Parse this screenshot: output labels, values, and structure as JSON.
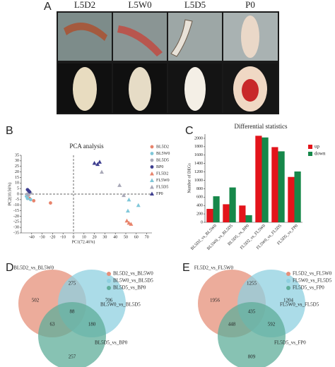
{
  "photos": {
    "panel": "A",
    "columns": [
      "L5D2",
      "L5W0",
      "L5D5",
      "P0"
    ]
  },
  "chart_data": [
    {
      "type": "scatter",
      "panel": "B",
      "title": "PCA analysis",
      "x_label": "PC1(72.46%)",
      "y_label": "PC2(10.56%)",
      "xlim": [
        -50,
        75
      ],
      "xticks": [
        -40,
        -30,
        -20,
        -10,
        0,
        10,
        20,
        30,
        40,
        50,
        60,
        70
      ],
      "ylim": [
        -35,
        35
      ],
      "yticks": [
        -35,
        -30,
        -25,
        -20,
        -15,
        -10,
        -5,
        0,
        5,
        10,
        15,
        20,
        25,
        30,
        35
      ],
      "series": [
        {
          "name": "BL5D2",
          "color": "#e8836b",
          "marker": "circle",
          "x": [
            -42,
            -38,
            -22
          ],
          "y": [
            -4,
            -6,
            -8
          ]
        },
        {
          "name": "BL5W0",
          "color": "#7fc7d9",
          "marker": "circle",
          "x": [
            -45,
            -44,
            -41
          ],
          "y": [
            -2,
            -4,
            -5
          ]
        },
        {
          "name": "BL5D5",
          "color": "#a9a9b8",
          "marker": "circle",
          "x": [
            -44,
            -43,
            -41
          ],
          "y": [
            0,
            -1,
            1
          ]
        },
        {
          "name": "BP0",
          "color": "#3d3d8f",
          "marker": "circle",
          "x": [
            -44,
            -43,
            -42
          ],
          "y": [
            4,
            3,
            2
          ]
        },
        {
          "name": "FL5D2",
          "color": "#e8836b",
          "marker": "triangle",
          "x": [
            51,
            53,
            55
          ],
          "y": [
            -24,
            -26,
            -27
          ]
        },
        {
          "name": "FL5W0",
          "color": "#7fc7d9",
          "marker": "triangle",
          "x": [
            52,
            62,
            53
          ],
          "y": [
            -15,
            -10,
            -5
          ]
        },
        {
          "name": "FL5D5",
          "color": "#a9a9b8",
          "marker": "triangle",
          "x": [
            48,
            44,
            27
          ],
          "y": [
            -1,
            8,
            20
          ]
        },
        {
          "name": "FP0",
          "color": "#3d3d8f",
          "marker": "triangle",
          "x": [
            20,
            23,
            25
          ],
          "y": [
            28,
            27,
            29
          ]
        }
      ]
    },
    {
      "type": "bar",
      "panel": "C",
      "title": "Differential statistics",
      "y_label": "Number of DEGs",
      "categories": [
        "BL5D2_vs_BL5W0",
        "BL5W0_vs_BL5D5",
        "BL5D5_vs_BP0",
        "FL5D2_vs_FL5W0",
        "FL5W0_vs_FL5D5",
        "FL5D5_vs_FP0"
      ],
      "ylim": [
        0,
        2100
      ],
      "yticks": [
        0,
        200,
        400,
        600,
        800,
        1000,
        1200,
        1400,
        1600,
        1800,
        2000
      ],
      "series": [
        {
          "name": "up",
          "color": "#e3141b",
          "values": [
            320,
            430,
            400,
            2060,
            1790,
            1080
          ]
        },
        {
          "name": "down",
          "color": "#16884a",
          "values": [
            620,
            830,
            170,
            2020,
            1690,
            1210
          ]
        }
      ]
    },
    {
      "type": "venn",
      "panel": "D",
      "sets": [
        {
          "name": "BL5D2_vs_BL5W0",
          "color": "#e6907a"
        },
        {
          "name": "BL5W0_vs_BL5D5",
          "color": "#8fd0e0"
        },
        {
          "name": "BL5D5_vs_BP0",
          "color": "#5fae9a"
        }
      ],
      "regions": [
        {
          "sets": [
            0
          ],
          "value": 502
        },
        {
          "sets": [
            1
          ],
          "value": 706
        },
        {
          "sets": [
            2
          ],
          "value": 257
        },
        {
          "sets": [
            0,
            1
          ],
          "value": 275
        },
        {
          "sets": [
            0,
            2
          ],
          "value": 63
        },
        {
          "sets": [
            1,
            2
          ],
          "value": 180
        },
        {
          "sets": [
            0,
            1,
            2
          ],
          "value": 88
        }
      ]
    },
    {
      "type": "venn",
      "panel": "E",
      "sets": [
        {
          "name": "FL5D2_vs_FL5W0",
          "color": "#e6907a"
        },
        {
          "name": "FL5W0_vs_FL5D5",
          "color": "#8fd0e0"
        },
        {
          "name": "FL5D5_vs_FP0",
          "color": "#5fae9a"
        }
      ],
      "regions": [
        {
          "sets": [
            0
          ],
          "value": 1956
        },
        {
          "sets": [
            1
          ],
          "value": 1204
        },
        {
          "sets": [
            2
          ],
          "value": 809
        },
        {
          "sets": [
            0,
            1
          ],
          "value": 1255
        },
        {
          "sets": [
            0,
            2
          ],
          "value": 448
        },
        {
          "sets": [
            1,
            2
          ],
          "value": 592
        },
        {
          "sets": [
            0,
            1,
            2
          ],
          "value": 435
        }
      ]
    }
  ]
}
